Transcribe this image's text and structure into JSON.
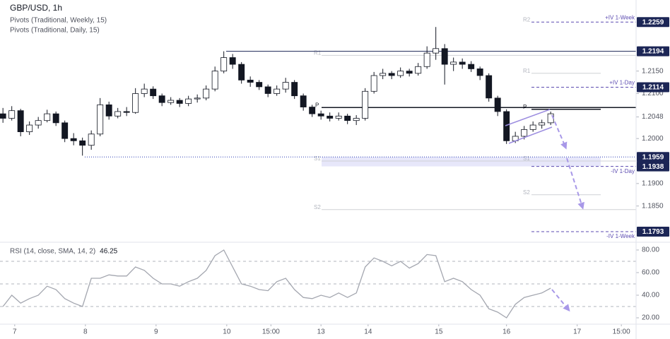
{
  "chart_data": {
    "type": "candlestick",
    "title": "GBP/USD, 1h",
    "subtitles": [
      "Pivots (Traditional, Weekly, 15)",
      "Pivots (Traditional, Daily, 15)"
    ],
    "x": [
      1,
      4,
      7,
      10,
      13,
      16,
      19,
      22,
      25,
      28,
      31,
      34,
      37,
      40,
      43,
      46,
      49,
      52,
      55,
      58,
      61,
      64,
      67,
      70,
      73,
      76,
      79,
      82,
      85,
      88,
      91,
      94,
      97,
      100,
      103,
      106,
      109,
      112,
      115,
      118,
      121,
      124,
      127,
      130,
      133,
      136,
      139,
      142,
      145,
      148,
      151,
      154,
      157,
      160,
      163,
      166,
      169,
      172,
      175,
      178,
      181,
      184,
      187
    ],
    "open": [
      1.2055,
      1.2045,
      1.2062,
      1.2015,
      1.203,
      1.204,
      1.2055,
      1.2035,
      1.2,
      1.1995,
      1.1985,
      1.201,
      1.2075,
      1.205,
      1.206,
      1.2058,
      1.21,
      1.211,
      1.2095,
      1.208,
      1.2085,
      1.2078,
      1.2088,
      1.209,
      1.211,
      1.215,
      1.218,
      1.2165,
      1.213,
      1.2125,
      1.2115,
      1.21,
      1.211,
      1.2125,
      1.2095,
      1.207,
      1.2055,
      1.205,
      1.2045,
      1.205,
      1.204,
      1.2045,
      1.2105,
      1.214,
      1.2145,
      1.214,
      1.215,
      1.2145,
      1.216,
      1.219,
      1.22,
      1.2165,
      1.217,
      1.2165,
      1.2155,
      1.214,
      1.209,
      1.206,
      1.1995,
      1.2005,
      1.202,
      1.203,
      1.2035
    ],
    "high": [
      1.2068,
      1.2072,
      1.2066,
      1.2038,
      1.2048,
      1.2064,
      1.206,
      1.204,
      1.2012,
      1.2002,
      1.2018,
      1.209,
      1.2082,
      1.2068,
      1.207,
      1.2112,
      1.2122,
      1.2116,
      1.21,
      1.2092,
      1.209,
      1.2095,
      1.2098,
      1.2118,
      1.216,
      1.2194,
      1.2188,
      1.217,
      1.2138,
      1.213,
      1.212,
      1.2118,
      1.2135,
      1.213,
      1.21,
      1.2075,
      1.2062,
      1.2058,
      1.2058,
      1.2055,
      1.2052,
      1.2112,
      1.2148,
      1.2155,
      1.215,
      1.2158,
      1.2155,
      1.2168,
      1.2205,
      1.2248,
      1.221,
      1.218,
      1.2178,
      1.2172,
      1.216,
      1.2145,
      1.2095,
      1.2065,
      1.2015,
      1.2028,
      1.2038,
      1.2042,
      1.206
    ],
    "low": [
      1.2035,
      1.204,
      1.2005,
      1.2008,
      1.2022,
      1.2036,
      1.2028,
      1.1992,
      1.1985,
      1.1962,
      1.1975,
      1.2005,
      1.2042,
      1.2045,
      1.205,
      1.2055,
      1.2092,
      1.2088,
      1.2072,
      1.2075,
      1.207,
      1.2072,
      1.208,
      1.2085,
      1.2105,
      1.2145,
      1.2155,
      1.2122,
      1.2115,
      1.2108,
      1.2092,
      1.2095,
      1.2102,
      1.2088,
      1.2062,
      1.2048,
      1.2042,
      1.2038,
      1.204,
      1.2032,
      1.203,
      1.204,
      1.21,
      1.2132,
      1.2132,
      1.2135,
      1.2138,
      1.214,
      1.2155,
      1.2175,
      1.212,
      1.215,
      1.2155,
      1.2148,
      1.213,
      1.2082,
      1.205,
      1.1988,
      1.199,
      1.1998,
      1.2015,
      1.2022,
      1.203
    ],
    "close": [
      1.2045,
      1.2062,
      1.2015,
      1.203,
      1.204,
      1.2055,
      1.2035,
      1.2,
      1.1995,
      1.1985,
      1.201,
      1.2075,
      1.205,
      1.206,
      1.2058,
      1.21,
      1.211,
      1.2095,
      1.208,
      1.2085,
      1.2078,
      1.2088,
      1.209,
      1.211,
      1.215,
      1.218,
      1.2165,
      1.213,
      1.2125,
      1.2115,
      1.21,
      1.211,
      1.2125,
      1.2095,
      1.207,
      1.2055,
      1.205,
      1.2045,
      1.205,
      1.204,
      1.2045,
      1.2105,
      1.214,
      1.2145,
      1.214,
      1.215,
      1.2145,
      1.216,
      1.219,
      1.22,
      1.2165,
      1.217,
      1.2165,
      1.2155,
      1.214,
      1.209,
      1.206,
      1.1995,
      1.2005,
      1.202,
      1.203,
      1.2035,
      1.2055
    ],
    "colors": {
      "up": "#ffffff",
      "down": "#131722",
      "outline": "#131722"
    },
    "xlim": [
      0,
      216
    ],
    "xticks": [
      {
        "value": 5,
        "label": "7"
      },
      {
        "value": 29,
        "label": "8"
      },
      {
        "value": 53,
        "label": "9"
      },
      {
        "value": 77,
        "label": "10"
      },
      {
        "value": 92,
        "label": "15:00"
      },
      {
        "value": 109,
        "label": "13"
      },
      {
        "value": 125,
        "label": "14"
      },
      {
        "value": 149,
        "label": "15"
      },
      {
        "value": 172,
        "label": "16"
      },
      {
        "value": 196,
        "label": "17"
      },
      {
        "value": 211,
        "label": "15:00"
      }
    ],
    "ylim": [
      1.1771,
      1.2308
    ],
    "yticks": [
      {
        "value": 1.215,
        "label": "1.2150"
      },
      {
        "value": 1.21,
        "label": "1.2100"
      },
      1.2048,
      {
        "value": 1.2,
        "label": "1.2000"
      },
      {
        "value": 1.19,
        "label": "1.1900"
      },
      {
        "value": 1.185,
        "label": "1.1850"
      }
    ],
    "markers": [
      1.2259,
      1.2194,
      1.2114,
      1.1959,
      1.1938,
      1.1793
    ],
    "weekly_pivots": [
      {
        "label": "R1",
        "value": 1.2185
      },
      {
        "label": "P",
        "value": 1.2069
      },
      {
        "label": "S1",
        "value": 1.195
      },
      {
        "label": "S2",
        "value": 1.1842
      }
    ],
    "daily_pivots": [
      {
        "label": "R2",
        "value": 1.2259
      },
      {
        "label": "R1",
        "value": 1.2145
      },
      {
        "label": "P",
        "value": 1.2065
      },
      {
        "label": "S1",
        "value": 1.195
      },
      {
        "label": "S2",
        "value": 1.1875
      }
    ],
    "iv_levels": [
      {
        "label": "+IV 1-Week",
        "value": 1.2259
      },
      {
        "label": "+IV 1-Day",
        "value": 1.2114
      },
      {
        "label": "-IV 1-Day",
        "value": 1.1938
      },
      {
        "label": "-IV 1-Week",
        "value": 1.1793
      }
    ],
    "rsi": {
      "title": "RSI (14, close, SMA, 14, 2)",
      "color": "#a3a6af",
      "values": [
        30,
        40,
        33,
        37,
        40,
        48,
        45,
        37,
        33,
        30,
        55,
        55,
        58,
        57,
        57,
        65,
        62,
        55,
        50,
        50,
        48,
        52,
        55,
        62,
        75,
        80,
        65,
        50,
        48,
        45,
        44,
        52,
        55,
        45,
        38,
        37,
        40,
        38,
        42,
        38,
        42,
        65,
        73,
        70,
        66,
        70,
        64,
        68,
        76,
        75,
        52,
        55,
        52,
        45,
        40,
        28,
        25,
        20,
        32,
        38,
        40,
        42,
        46.25
      ],
      "ylim": [
        15,
        85.6
      ],
      "yticks": [
        {
          "value": 80,
          "label": "80.00"
        },
        {
          "value": 60,
          "label": "60.00"
        },
        {
          "value": 40,
          "label": "40.00"
        },
        {
          "value": 20,
          "label": "20.00"
        }
      ],
      "levels": [
        70,
        50,
        30
      ]
    }
  }
}
